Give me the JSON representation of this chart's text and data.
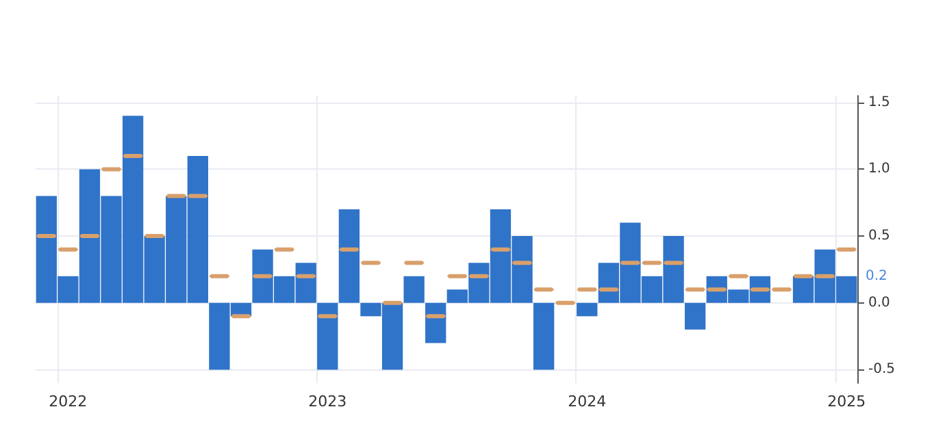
{
  "chart_data": {
    "type": "bar",
    "categories": [
      null,
      "2022",
      null,
      null,
      null,
      null,
      null,
      null,
      null,
      null,
      null,
      null,
      null,
      "2023",
      null,
      null,
      null,
      null,
      null,
      null,
      null,
      null,
      null,
      null,
      null,
      "2024",
      null,
      null,
      null,
      null,
      null,
      null,
      null,
      null,
      null,
      null,
      null,
      "2025"
    ],
    "series": [
      {
        "type": "bar",
        "color": "#3074c9",
        "values": [
          0.8,
          0.2,
          1.0,
          0.8,
          1.4,
          0.5,
          0.8,
          1.1,
          -0.5,
          -0.1,
          0.4,
          0.2,
          0.3,
          -0.5,
          0.7,
          -0.1,
          -0.5,
          0.2,
          -0.3,
          0.1,
          0.3,
          0.7,
          0.5,
          -0.5,
          0.0,
          -0.1,
          0.3,
          0.6,
          0.2,
          0.5,
          -0.2,
          0.2,
          0.1,
          0.2,
          0.0,
          0.2,
          0.4,
          0.2
        ]
      },
      {
        "type": "scatter",
        "color": "#d9a06b",
        "values": [
          0.5,
          0.4,
          0.5,
          1.0,
          1.1,
          0.5,
          0.8,
          0.8,
          0.2,
          -0.1,
          0.2,
          0.4,
          0.2,
          -0.1,
          0.4,
          0.3,
          0.0,
          0.3,
          -0.1,
          0.2,
          0.2,
          0.4,
          0.3,
          0.1,
          0.0,
          0.1,
          0.1,
          0.3,
          0.3,
          0.3,
          0.1,
          0.1,
          0.2,
          0.1,
          0.1,
          0.2,
          0.2,
          0.4
        ]
      }
    ],
    "ylim": [
      -0.6,
      1.55
    ],
    "yticks": [
      {
        "value": -0.5,
        "label": "-0.5"
      },
      {
        "value": 0,
        "label": "0.0"
      },
      {
        "value": 0.5,
        "label": "0.5"
      },
      {
        "value": 1,
        "label": "1.0"
      },
      {
        "value": 1.5,
        "label": "1.5"
      }
    ],
    "annotations": [
      "0.2"
    ],
    "grid": true
  }
}
